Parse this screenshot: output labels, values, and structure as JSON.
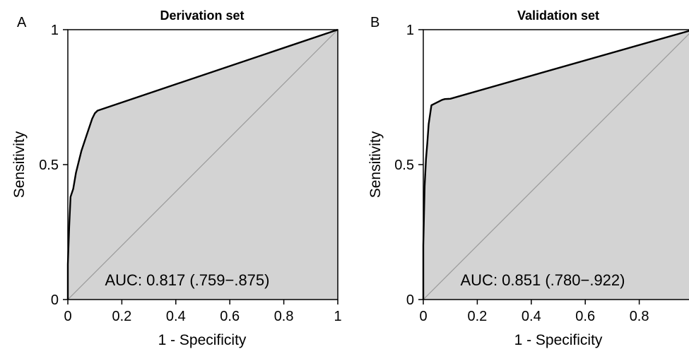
{
  "colors": {
    "roc_fill": "#d3d3d3",
    "roc_line": "#000000",
    "diagonal": "#9a9a9a",
    "frame": "#000000"
  },
  "chart_data": [
    {
      "panel": "A",
      "type": "area",
      "title": "Derivation set",
      "xlabel": "1 - Specificity",
      "ylabel": "Sensitivity",
      "xlim": [
        0,
        1
      ],
      "ylim": [
        0,
        1
      ],
      "xticks": [
        "0",
        "0.2",
        "0.4",
        "0.6",
        "0.8",
        "1"
      ],
      "yticks": [
        "0",
        "0.5",
        "1"
      ],
      "annotation": "AUC: 0.817 (.759−.875)",
      "diagonal_reference": true,
      "series": [
        {
          "x": [
            0,
            0,
            0.005,
            0.01,
            0.02,
            0.03,
            0.05,
            0.07,
            0.09,
            0.1,
            0.11,
            1
          ],
          "y": [
            0,
            0.13,
            0.27,
            0.38,
            0.41,
            0.47,
            0.55,
            0.61,
            0.67,
            0.69,
            0.7,
            1
          ]
        }
      ]
    },
    {
      "panel": "B",
      "type": "area",
      "title": "Validation set",
      "xlabel": "1 - Specificity",
      "ylabel": "Sensitivity",
      "xlim": [
        0,
        1
      ],
      "ylim": [
        0,
        1
      ],
      "xticks": [
        "0",
        "0.2",
        "0.4",
        "0.6",
        "0.8"
      ],
      "yticks": [
        "0",
        "0.5",
        "1"
      ],
      "annotation": "AUC: 0.851 (.780−.922)",
      "diagonal_reference": true,
      "series": [
        {
          "x": [
            0,
            0,
            0.005,
            0.01,
            0.015,
            0.02,
            0.03,
            0.04,
            0.07,
            0.08,
            0.1,
            1
          ],
          "y": [
            0,
            0.2,
            0.42,
            0.52,
            0.58,
            0.65,
            0.72,
            0.725,
            0.74,
            0.743,
            0.744,
            1
          ]
        }
      ]
    }
  ]
}
